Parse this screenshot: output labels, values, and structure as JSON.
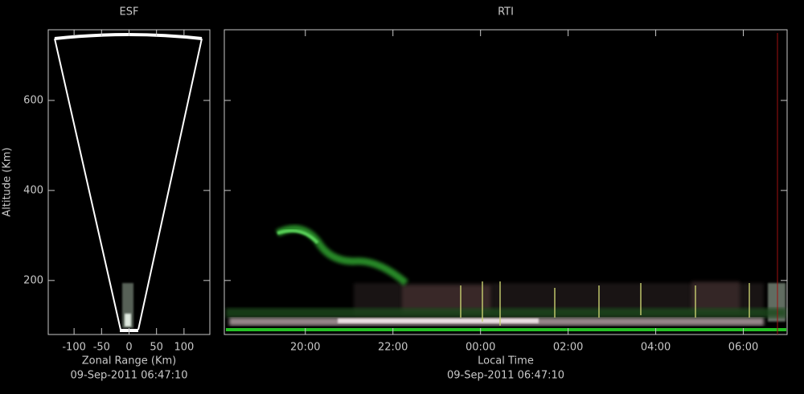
{
  "chart_data": [
    {
      "type": "fan",
      "title": "ESF",
      "x_label": "Zonal Range (Km)",
      "y_label": "Altitude (Km)",
      "timestamp": "09-Sep-2011 06:47:10",
      "xlim": [
        -147,
        147
      ],
      "ylim": [
        80,
        757
      ],
      "xticks": [
        -100,
        -50,
        0,
        50,
        100
      ],
      "yticks": [
        200,
        400,
        600
      ]
    },
    {
      "type": "rti",
      "title": "RTI",
      "x_label": "Local Time",
      "timestamp": "09-Sep-2011 06:47:10",
      "xlim": [
        18.15,
        31
      ],
      "ylim": [
        80,
        757
      ],
      "xticks": [
        {
          "value": 20,
          "label": "20:00"
        },
        {
          "value": 22,
          "label": "22:00"
        },
        {
          "value": 24,
          "label": "00:00"
        },
        {
          "value": 26,
          "label": "02:00"
        },
        {
          "value": 28,
          "label": "04:00"
        },
        {
          "value": 30,
          "label": "06:00"
        }
      ],
      "yticks": [
        200,
        400,
        600
      ],
      "ytick_labels": false,
      "cursor": 30.78,
      "cursor_color": "#a01010"
    }
  ]
}
